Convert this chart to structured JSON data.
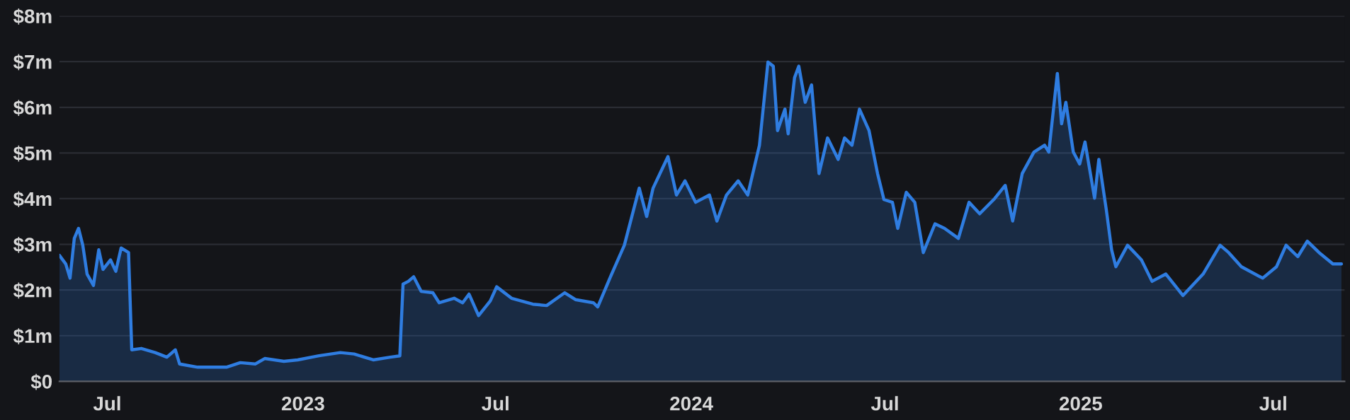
{
  "chart_data": {
    "type": "area",
    "x": [
      "2022-05-17",
      "2022-05-23",
      "2022-05-27",
      "2022-05-31",
      "2022-06-04",
      "2022-06-08",
      "2022-06-12",
      "2022-06-18",
      "2022-06-23",
      "2022-06-27",
      "2022-07-04",
      "2022-07-09",
      "2022-07-14",
      "2022-07-21",
      "2022-07-24",
      "2022-08-02",
      "2022-08-15",
      "2022-08-26",
      "2022-09-03",
      "2022-09-07",
      "2022-09-24",
      "2022-10-21",
      "2022-11-03",
      "2022-11-17",
      "2022-11-26",
      "2022-12-14",
      "2022-12-27",
      "2023-01-16",
      "2023-02-05",
      "2023-02-18",
      "2023-03-08",
      "2023-03-24",
      "2023-04-02",
      "2023-04-05",
      "2023-04-10",
      "2023-04-15",
      "2023-04-22",
      "2023-05-03",
      "2023-05-09",
      "2023-05-23",
      "2023-05-31",
      "2023-06-06",
      "2023-06-15",
      "2023-06-26",
      "2023-07-02",
      "2023-07-16",
      "2023-08-05",
      "2023-08-18",
      "2023-09-04",
      "2023-09-14",
      "2023-10-01",
      "2023-10-05",
      "2023-10-17",
      "2023-10-30",
      "2023-11-13",
      "2023-11-20",
      "2023-11-26",
      "2023-12-10",
      "2023-12-18",
      "2023-12-26",
      "2024-01-05",
      "2024-01-18",
      "2024-01-25",
      "2024-02-03",
      "2024-02-14",
      "2024-02-23",
      "2024-03-05",
      "2024-03-13",
      "2024-03-18",
      "2024-03-22",
      "2024-03-29",
      "2024-04-01",
      "2024-04-07",
      "2024-04-11",
      "2024-04-17",
      "2024-04-23",
      "2024-04-30",
      "2024-05-08",
      "2024-05-18",
      "2024-05-24",
      "2024-05-31",
      "2024-06-07",
      "2024-06-16",
      "2024-06-24",
      "2024-06-30",
      "2024-07-08",
      "2024-07-13",
      "2024-07-21",
      "2024-07-29",
      "2024-08-06",
      "2024-08-17",
      "2024-08-26",
      "2024-09-08",
      "2024-09-18",
      "2024-09-28",
      "2024-10-12",
      "2024-10-22",
      "2024-10-29",
      "2024-11-07",
      "2024-11-18",
      "2024-11-28",
      "2024-12-02",
      "2024-12-10",
      "2024-12-14",
      "2024-12-18",
      "2024-12-25",
      "2024-12-31",
      "2025-01-05",
      "2025-01-14",
      "2025-01-18",
      "2025-01-25",
      "2025-01-30",
      "2025-02-03",
      "2025-02-14",
      "2025-02-27",
      "2025-03-09",
      "2025-03-22",
      "2025-04-07",
      "2025-04-26",
      "2025-05-12",
      "2025-05-20",
      "2025-06-01",
      "2025-06-21",
      "2025-07-04",
      "2025-07-13",
      "2025-07-24",
      "2025-08-02",
      "2025-08-13",
      "2025-08-26",
      "2025-09-03"
    ],
    "series": [
      {
        "color": "#2f7de1",
        "values": [
          2.76,
          2.57,
          2.26,
          3.13,
          3.35,
          2.98,
          2.35,
          2.1,
          2.88,
          2.45,
          2.66,
          2.41,
          2.92,
          2.82,
          0.69,
          0.72,
          0.63,
          0.53,
          0.69,
          0.38,
          0.31,
          0.31,
          0.41,
          0.38,
          0.5,
          0.44,
          0.47,
          0.56,
          0.63,
          0.6,
          0.47,
          0.53,
          0.56,
          2.13,
          2.19,
          2.29,
          1.97,
          1.94,
          1.72,
          1.82,
          1.72,
          1.91,
          1.44,
          1.76,
          2.07,
          1.82,
          1.69,
          1.66,
          1.94,
          1.79,
          1.72,
          1.63,
          2.29,
          2.98,
          4.23,
          3.61,
          4.23,
          4.92,
          4.08,
          4.39,
          3.92,
          4.08,
          3.51,
          4.08,
          4.39,
          4.08,
          5.17,
          6.99,
          6.9,
          5.49,
          5.96,
          5.42,
          6.65,
          6.9,
          6.11,
          6.49,
          4.55,
          5.33,
          4.86,
          5.33,
          5.17,
          5.96,
          5.49,
          4.55,
          3.98,
          3.92,
          3.35,
          4.14,
          3.92,
          2.82,
          3.45,
          3.35,
          3.13,
          3.92,
          3.67,
          4.0,
          4.29,
          3.51,
          4.55,
          5.02,
          5.17,
          5.02,
          6.74,
          5.64,
          6.11,
          5.02,
          4.76,
          5.24,
          4.01,
          4.86,
          3.76,
          2.88,
          2.51,
          2.98,
          2.66,
          2.19,
          2.35,
          1.88,
          2.35,
          2.98,
          2.82,
          2.51,
          2.26,
          2.51,
          2.98,
          2.73,
          3.07,
          2.82,
          2.57,
          2.57
        ]
      }
    ],
    "xlim": [
      "2022-05-17",
      "2025-09-06"
    ],
    "xticks": [
      {
        "value": "2022-07-01",
        "label": "Jul"
      },
      {
        "value": "2023-01-01",
        "label": "2023"
      },
      {
        "value": "2023-07-01",
        "label": "Jul"
      },
      {
        "value": "2024-01-01",
        "label": "2024"
      },
      {
        "value": "2024-07-01",
        "label": "Jul"
      },
      {
        "value": "2025-01-01",
        "label": "2025"
      },
      {
        "value": "2025-07-01",
        "label": "Jul"
      }
    ],
    "ylim": [
      0,
      8
    ],
    "yticks": [
      {
        "value": 0,
        "label": "$0"
      },
      {
        "value": 1,
        "label": "$1m"
      },
      {
        "value": 2,
        "label": "$2m"
      },
      {
        "value": 3,
        "label": "$3m"
      },
      {
        "value": 4,
        "label": "$4m"
      },
      {
        "value": 5,
        "label": "$5m"
      },
      {
        "value": 6,
        "label": "$6m"
      },
      {
        "value": 7,
        "label": "$7m"
      },
      {
        "value": 8,
        "label": "$8m"
      }
    ],
    "grid": "y"
  }
}
